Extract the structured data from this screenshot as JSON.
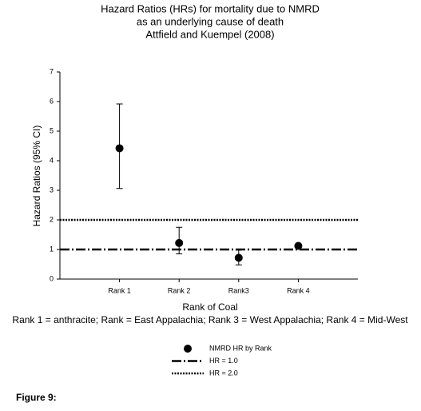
{
  "chart_data": {
    "type": "scatter",
    "title": [
      "Hazard Ratios (HRs) for mortality due to NMRD",
      "as an underlying cause of death",
      "Attfield and Kuempel (2008)"
    ],
    "x_label": "Rank of Coal",
    "y_label": "Hazard Ratios (95% CI)",
    "note": "Rank 1 = anthracite; Rank = East Appalachia; Rank 3 = West Appalachia; Rank 4 = Mid-West",
    "categories": [
      "Rank 1",
      "Rank 2",
      "Rank3",
      "Rank 4"
    ],
    "series": [
      {
        "name": "NMRD HR by Rank",
        "color": "#000000",
        "values": [
          4.42,
          1.22,
          0.72,
          1.12
        ],
        "ci_low": [
          3.06,
          0.85,
          0.48,
          null
        ],
        "ci_high": [
          5.92,
          1.75,
          0.98,
          null
        ]
      }
    ],
    "reference_lines": [
      {
        "name": "HR = 1.0",
        "value": 1,
        "style": "dashdot"
      },
      {
        "name": "HR = 2.0",
        "value": 2,
        "style": "dotted"
      }
    ],
    "ylim": [
      0,
      7
    ],
    "yticks": [
      0,
      1,
      2,
      3,
      4,
      5,
      6,
      7
    ],
    "figure_label": "Figure 9:"
  }
}
